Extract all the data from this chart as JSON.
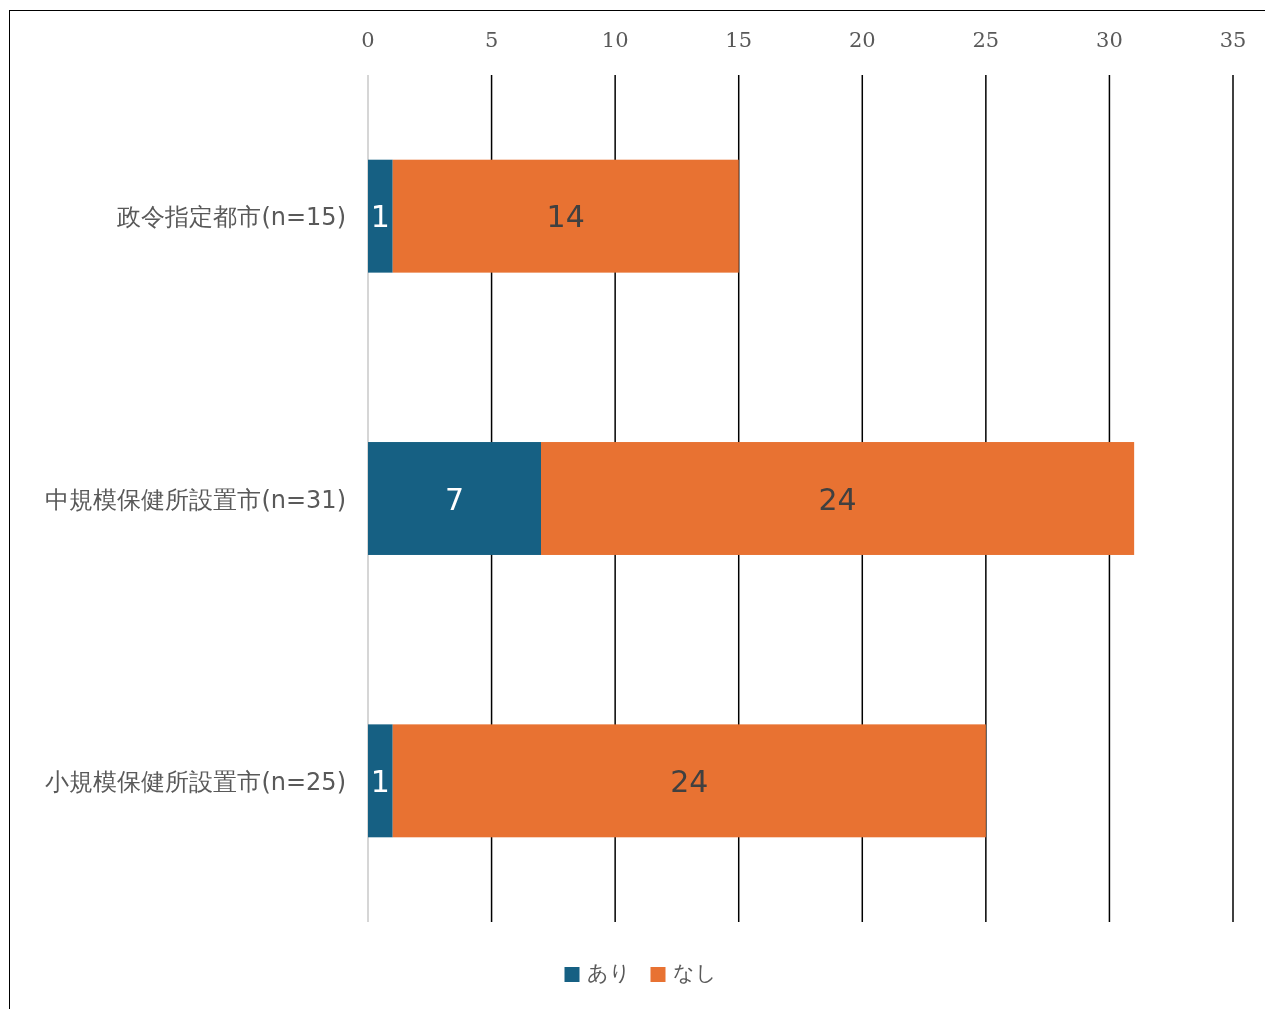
{
  "chart_data": {
    "type": "bar",
    "orientation": "horizontal",
    "stacked": true,
    "categories": [
      "政令指定都市(n=15)",
      "中規模保健所設置市(n=31)",
      "小規模保健所設置市(n=25)"
    ],
    "series": [
      {
        "name": "あり",
        "color": "#166083",
        "values": [
          1,
          7,
          1
        ]
      },
      {
        "name": "なし",
        "color": "#e87232",
        "values": [
          14,
          24,
          24
        ]
      }
    ],
    "xlim": [
      0,
      35
    ],
    "xticks": [
      0,
      5,
      10,
      15,
      20,
      25,
      30,
      35
    ],
    "grid": "x",
    "legend": "bottom",
    "data_labels": true
  }
}
